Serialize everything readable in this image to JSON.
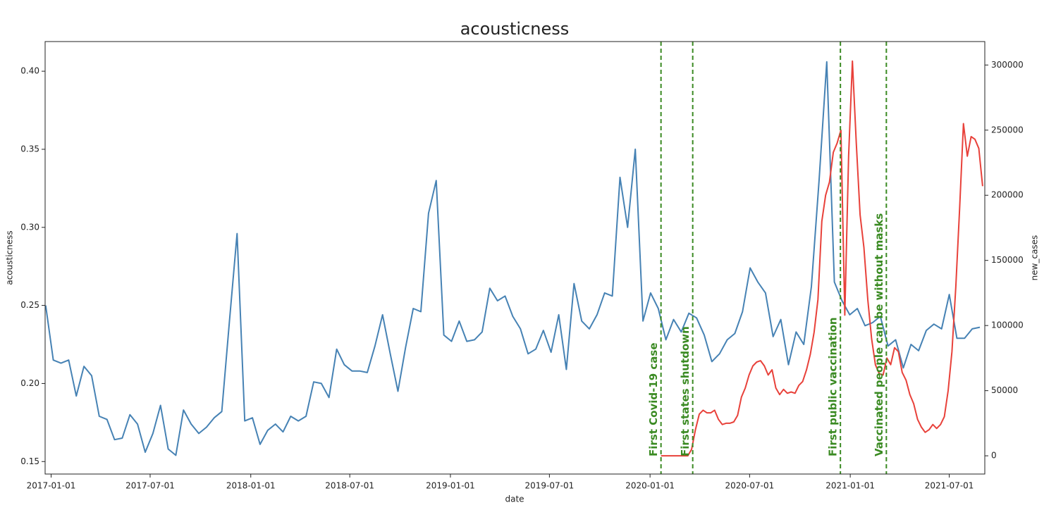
{
  "chart_data": {
    "type": "line",
    "title": "acousticness",
    "xlabel": "date",
    "ylabel": "acousticness",
    "y2label": "new_cases",
    "xlim": [
      "2016-12-21",
      "2021-09-04"
    ],
    "xticks": [
      "2017-01-01",
      "2017-07-01",
      "2018-01-01",
      "2018-07-01",
      "2019-01-01",
      "2019-07-01",
      "2020-01-01",
      "2020-07-01",
      "2021-01-01",
      "2021-07-01"
    ],
    "ylim": [
      0.142,
      0.419
    ],
    "yticks": [
      0.15,
      {
        "value": 0.2,
        "label": "0.20"
      },
      0.25,
      {
        "value": 0.3,
        "label": "0.30"
      },
      0.35,
      {
        "value": 0.4,
        "label": "0.40"
      }
    ],
    "y2lim": [
      -14000,
      318000
    ],
    "y2ticks": [
      0,
      50000,
      100000,
      150000,
      200000,
      250000,
      300000
    ],
    "grid": false,
    "series": [
      {
        "color": "#4682b4",
        "x": [
          "2016-12-22",
          "2017-01-05",
          "2017-01-19",
          "2017-02-02",
          "2017-02-16",
          "2017-03-02",
          "2017-03-16",
          "2017-03-30",
          "2017-04-13",
          "2017-04-27",
          "2017-05-11",
          "2017-05-25",
          "2017-06-08",
          "2017-06-22",
          "2017-07-06",
          "2017-07-20",
          "2017-08-03",
          "2017-08-17",
          "2017-08-31",
          "2017-09-14",
          "2017-09-28",
          "2017-10-12",
          "2017-10-26",
          "2017-11-09",
          "2017-11-23",
          "2017-12-07",
          "2017-12-21",
          "2018-01-04",
          "2018-01-18",
          "2018-02-01",
          "2018-02-15",
          "2018-03-01",
          "2018-03-15",
          "2018-03-29",
          "2018-04-12",
          "2018-04-26",
          "2018-05-10",
          "2018-05-24",
          "2018-06-07",
          "2018-06-21",
          "2018-07-05",
          "2018-07-19",
          "2018-08-02",
          "2018-08-16",
          "2018-08-30",
          "2018-09-13",
          "2018-09-27",
          "2018-10-11",
          "2018-10-25",
          "2018-11-08",
          "2018-11-22",
          "2018-12-06",
          "2018-12-20",
          "2019-01-03",
          "2019-01-17",
          "2019-01-31",
          "2019-02-14",
          "2019-02-28",
          "2019-03-14",
          "2019-03-28",
          "2019-04-11",
          "2019-04-25",
          "2019-05-09",
          "2019-05-23",
          "2019-06-06",
          "2019-06-20",
          "2019-07-04",
          "2019-07-18",
          "2019-08-01",
          "2019-08-15",
          "2019-08-29",
          "2019-09-12",
          "2019-09-26",
          "2019-10-10",
          "2019-10-24",
          "2019-11-07",
          "2019-11-21",
          "2019-12-05",
          "2019-12-19",
          "2020-01-02",
          "2020-01-16",
          "2020-01-30",
          "2020-02-13",
          "2020-02-27",
          "2020-03-12",
          "2020-03-26",
          "2020-04-09",
          "2020-04-23",
          "2020-05-07",
          "2020-05-21",
          "2020-06-04",
          "2020-06-18",
          "2020-07-02",
          "2020-07-16",
          "2020-07-30",
          "2020-08-13",
          "2020-08-27",
          "2020-09-10",
          "2020-09-24",
          "2020-10-08",
          "2020-10-22",
          "2020-11-05",
          "2020-11-19",
          "2020-12-03",
          "2020-12-17",
          "2020-12-31",
          "2021-01-14",
          "2021-01-28",
          "2021-02-11",
          "2021-02-25",
          "2021-03-11",
          "2021-03-25",
          "2021-04-08",
          "2021-04-22",
          "2021-05-06",
          "2021-05-20",
          "2021-06-03",
          "2021-06-17",
          "2021-07-01",
          "2021-07-15",
          "2021-07-29",
          "2021-08-12",
          "2021-08-26"
        ],
        "values": [
          0.25,
          0.215,
          0.213,
          0.215,
          0.192,
          0.211,
          0.205,
          0.179,
          0.177,
          0.164,
          0.165,
          0.18,
          0.174,
          0.156,
          0.168,
          0.186,
          0.158,
          0.154,
          0.183,
          0.174,
          0.168,
          0.172,
          0.178,
          0.182,
          0.24,
          0.296,
          0.176,
          0.178,
          0.161,
          0.17,
          0.174,
          0.169,
          0.179,
          0.176,
          0.179,
          0.201,
          0.2,
          0.191,
          0.222,
          0.212,
          0.208,
          0.208,
          0.207,
          0.224,
          0.244,
          0.219,
          0.195,
          0.223,
          0.248,
          0.246,
          0.309,
          0.33,
          0.231,
          0.227,
          0.24,
          0.227,
          0.228,
          0.233,
          0.261,
          0.253,
          0.256,
          0.243,
          0.235,
          0.219,
          0.222,
          0.234,
          0.22,
          0.244,
          0.209,
          0.264,
          0.24,
          0.235,
          0.244,
          0.258,
          0.256,
          0.332,
          0.3,
          0.35,
          0.24,
          0.258,
          0.248,
          0.228,
          0.241,
          0.233,
          0.245,
          0.242,
          0.231,
          0.214,
          0.219,
          0.228,
          0.232,
          0.246,
          0.274,
          0.265,
          0.258,
          0.23,
          0.241,
          0.212,
          0.233,
          0.225,
          0.262,
          0.33,
          0.406,
          0.265,
          0.253,
          0.244,
          0.248,
          0.237,
          0.239,
          0.243,
          0.224,
          0.228,
          0.21,
          0.225,
          0.221,
          0.234,
          0.238,
          0.235,
          0.257,
          0.229,
          0.229,
          0.235,
          0.236
        ]
      },
      {
        "color": "#e8413a",
        "axis": "y2",
        "x": [
          "2020-01-21",
          "2020-01-28",
          "2020-02-04",
          "2020-02-11",
          "2020-02-18",
          "2020-02-25",
          "2020-03-03",
          "2020-03-10",
          "2020-03-17",
          "2020-03-24",
          "2020-03-31",
          "2020-04-07",
          "2020-04-14",
          "2020-04-21",
          "2020-04-28",
          "2020-05-05",
          "2020-05-12",
          "2020-05-19",
          "2020-05-26",
          "2020-06-02",
          "2020-06-09",
          "2020-06-16",
          "2020-06-23",
          "2020-06-30",
          "2020-07-07",
          "2020-07-14",
          "2020-07-21",
          "2020-07-28",
          "2020-08-04",
          "2020-08-11",
          "2020-08-18",
          "2020-08-25",
          "2020-09-01",
          "2020-09-08",
          "2020-09-15",
          "2020-09-22",
          "2020-09-29",
          "2020-10-06",
          "2020-10-13",
          "2020-10-20",
          "2020-10-27",
          "2020-11-03",
          "2020-11-10",
          "2020-11-17",
          "2020-11-24",
          "2020-12-01",
          "2020-12-08",
          "2020-12-15",
          "2020-12-22",
          "2020-12-29",
          "2021-01-05",
          "2021-01-12",
          "2021-01-19",
          "2021-01-26",
          "2021-02-02",
          "2021-02-09",
          "2021-02-16",
          "2021-02-23",
          "2021-03-02",
          "2021-03-09",
          "2021-03-16",
          "2021-03-23",
          "2021-03-30",
          "2021-04-06",
          "2021-04-13",
          "2021-04-20",
          "2021-04-27",
          "2021-05-04",
          "2021-05-11",
          "2021-05-18",
          "2021-05-25",
          "2021-06-01",
          "2021-06-08",
          "2021-06-15",
          "2021-06-22",
          "2021-06-29",
          "2021-07-06",
          "2021-07-13",
          "2021-07-20",
          "2021-07-27",
          "2021-08-03",
          "2021-08-10",
          "2021-08-17",
          "2021-08-24",
          "2021-08-31"
        ],
        "values": [
          0,
          0,
          0,
          0,
          0,
          0,
          0,
          0,
          5000,
          20000,
          32000,
          35000,
          33000,
          33000,
          35000,
          28000,
          24000,
          25000,
          25000,
          26000,
          31000,
          45000,
          52000,
          62000,
          69000,
          72000,
          73000,
          69000,
          62000,
          66000,
          52000,
          47000,
          51000,
          48000,
          49000,
          48000,
          54000,
          57000,
          66000,
          78000,
          95000,
          120000,
          180000,
          200000,
          210000,
          233000,
          240000,
          250000,
          108000,
          230000,
          303000,
          240000,
          185000,
          160000,
          120000,
          90000,
          70000,
          63000,
          62000,
          75000,
          70000,
          83000,
          80000,
          64000,
          58000,
          47000,
          40000,
          28000,
          22000,
          18000,
          20000,
          24000,
          21000,
          24000,
          30000,
          50000,
          80000,
          130000,
          190000,
          255000,
          230000,
          245000,
          243000,
          236000,
          207000
        ]
      }
    ],
    "annotation_color": "#3a8a22",
    "annotations": [
      {
        "x": "2020-01-21",
        "text": "First Covid-19 case"
      },
      {
        "x": "2020-03-19",
        "text": "First states shutdown"
      },
      {
        "x": "2020-12-14",
        "text": "First public vaccination"
      },
      {
        "x": "2021-03-08",
        "text": "Vaccinated people can be without masks"
      }
    ]
  }
}
